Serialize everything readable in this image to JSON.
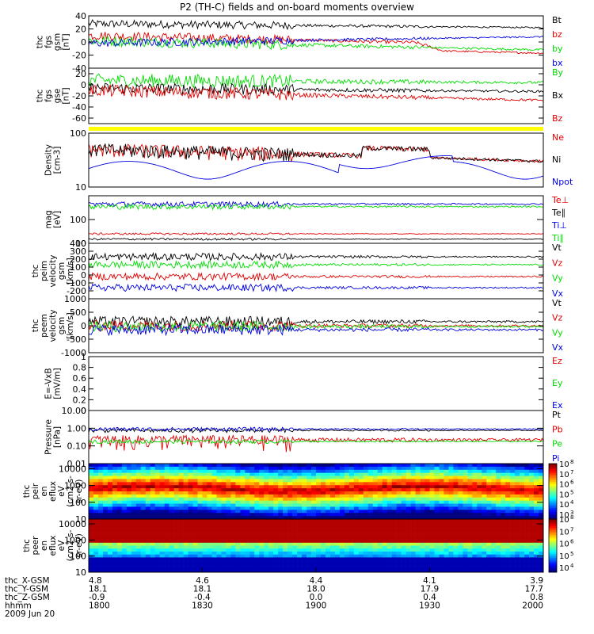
{
  "chart_data": {
    "type": "line",
    "title": "P2 (TH-C) fields and on-board moments overview",
    "date_label": "2009 Jun 20",
    "panels": [
      {
        "id": "fgs_gsm",
        "ylabel": [
          "thc",
          "fgs",
          "gsm",
          "[nT]"
        ],
        "yscale": "linear",
        "ylim": [
          -40,
          40
        ],
        "yticks": [
          -40,
          -20,
          0,
          20,
          40
        ],
        "series": [
          {
            "name": "Bt",
            "color": "#000000"
          },
          {
            "name": "bz",
            "color": "#e00000"
          },
          {
            "name": "by",
            "color": "#00dd00"
          },
          {
            "name": "bx",
            "color": "#0000e0"
          }
        ]
      },
      {
        "id": "fgs_gse",
        "ylabel": [
          "thc",
          "fgs",
          "gse",
          "[nT]"
        ],
        "yscale": "linear",
        "ylim": [
          -70,
          30
        ],
        "yticks": [
          -60,
          -40,
          -20,
          0,
          20
        ],
        "series": [
          {
            "name": "By",
            "color": "#00dd00"
          },
          {
            "name": "Bx",
            "color": "#000000"
          },
          {
            "name": "Bz",
            "color": "#e00000"
          }
        ]
      },
      {
        "id": "density",
        "ylabel": [
          "Density",
          "[cm-3]"
        ],
        "yscale": "log",
        "ylim": [
          10,
          100
        ],
        "ytick_labels": [
          "10",
          "100"
        ],
        "series": [
          {
            "name": "Ne",
            "color": "#e00000"
          },
          {
            "name": "Ni",
            "color": "#000000"
          },
          {
            "name": "Npot",
            "color": "#0000e0"
          }
        ]
      },
      {
        "id": "temperature",
        "ylabel": [
          "mag",
          "[eV]"
        ],
        "yscale": "log",
        "ylim": [
          10,
          1000
        ],
        "ytick_labels": [
          "10",
          "100"
        ],
        "series": [
          {
            "name": "Te⊥",
            "color": "#e00000"
          },
          {
            "name": "Te∥",
            "color": "#000000"
          },
          {
            "name": "Ti⊥",
            "color": "#0000e0"
          },
          {
            "name": "Ti∥",
            "color": "#00dd00"
          }
        ]
      },
      {
        "id": "peim_velocity",
        "ylabel": [
          "thc",
          "peim",
          "velocity",
          "gsm",
          "[km/s]"
        ],
        "yscale": "linear",
        "ylim": [
          -300,
          400
        ],
        "yticks": [
          -200,
          -100,
          0,
          100,
          200,
          300,
          400
        ],
        "series": [
          {
            "name": "Vt",
            "color": "#000000"
          },
          {
            "name": "Vz",
            "color": "#e00000"
          },
          {
            "name": "Vy",
            "color": "#00dd00"
          },
          {
            "name": "Vx",
            "color": "#0000e0"
          }
        ]
      },
      {
        "id": "peem_velocity",
        "ylabel": [
          "thc",
          "peem",
          "velocity",
          "gsm",
          "[km/s]"
        ],
        "yscale": "linear",
        "ylim": [
          -1000,
          1000
        ],
        "yticks": [
          -1000,
          -500,
          0,
          500,
          1000
        ],
        "series": [
          {
            "name": "Vt",
            "color": "#000000"
          },
          {
            "name": "Vz",
            "color": "#e00000"
          },
          {
            "name": "Vy",
            "color": "#00dd00"
          },
          {
            "name": "Vx",
            "color": "#0000e0"
          }
        ]
      },
      {
        "id": "efield",
        "ylabel": [
          "E=-VxB",
          "[mV/m]"
        ],
        "yscale": "linear",
        "ylim": [
          0,
          1
        ],
        "yticks": [
          0.0,
          0.2,
          0.4,
          0.6,
          0.8,
          1.0
        ],
        "series": [
          {
            "name": "Ez",
            "color": "#e00000"
          },
          {
            "name": "Ey",
            "color": "#00dd00"
          },
          {
            "name": "Ex",
            "color": "#0000e0"
          }
        ]
      },
      {
        "id": "pressure",
        "ylabel": [
          "Pressure",
          "[nPa]"
        ],
        "yscale": "log",
        "ylim": [
          0.01,
          10
        ],
        "ytick_labels": [
          "0.01",
          "0.10",
          "1.00",
          "10.00"
        ],
        "series": [
          {
            "name": "Pt",
            "color": "#000000"
          },
          {
            "name": "Pb",
            "color": "#e00000"
          },
          {
            "name": "Pe",
            "color": "#00dd00"
          },
          {
            "name": "Pi",
            "color": "#0000e0"
          }
        ]
      },
      {
        "id": "peir_spectrogram",
        "type": "heatmap",
        "ylabel": [
          "thc",
          "peir",
          "en",
          "eflux",
          "eV",
          "(cm2-s-",
          "sr-eV)"
        ],
        "yscale": "log",
        "ylim": [
          10,
          20000
        ],
        "ytick_labels": [
          "10",
          "100",
          "1000",
          "10000"
        ],
        "colorbar": {
          "scale": "log",
          "range": [
            1000,
            100000000
          ],
          "labels": [
            "10",
            "10",
            "10",
            "10",
            "10",
            "10"
          ],
          "exponents": [
            "3",
            "4",
            "5",
            "6",
            "7",
            "8"
          ]
        }
      },
      {
        "id": "peer_spectrogram",
        "type": "heatmap",
        "ylabel": [
          "thc",
          "peer",
          "en",
          "eflux",
          "eV",
          "(cm2-s-",
          "sr-eV)"
        ],
        "yscale": "log",
        "ylim": [
          10,
          20000
        ],
        "ytick_labels": [
          "10",
          "100",
          "1000",
          "10000"
        ],
        "colorbar": {
          "scale": "log",
          "range": [
            10000,
            100000000
          ],
          "labels": [
            "10",
            "10",
            "10",
            "10",
            "10"
          ],
          "exponents": [
            "4",
            "5",
            "6",
            "7",
            "8"
          ]
        }
      }
    ],
    "x_axis": {
      "range": [
        "18:00",
        "20:00"
      ],
      "ticks": [
        {
          "hhmm": "1800",
          "X": "4.8",
          "Y": "18.1",
          "Z": "-0.9"
        },
        {
          "hhmm": "1830",
          "X": "4.6",
          "Y": "18.1",
          "Z": "-0.4"
        },
        {
          "hhmm": "1900",
          "X": "4.4",
          "Y": "18.0",
          "Z": "0.0"
        },
        {
          "hhmm": "1930",
          "X": "4.1",
          "Y": "17.9",
          "Z": "0.4"
        },
        {
          "hhmm": "2000",
          "X": "3.9",
          "Y": "17.7",
          "Z": "0.8"
        }
      ],
      "row_labels": [
        "thc_X-GSM",
        "thc_Y-GSM",
        "thc_Z-GSM",
        "hhmm"
      ]
    },
    "status_bar_color": "#ffff00"
  }
}
